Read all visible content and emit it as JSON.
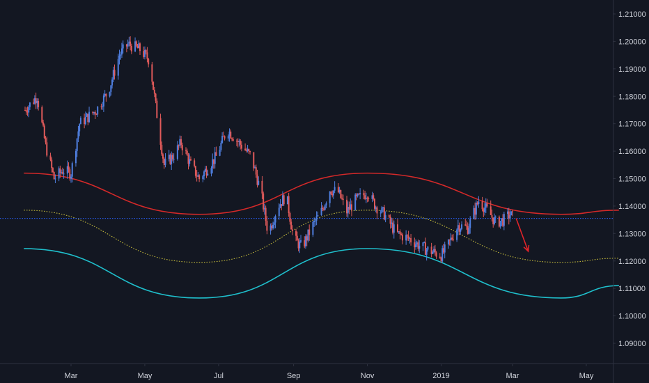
{
  "chart_data": {
    "type": "candlestick",
    "title": "",
    "ylim": [
      1.085,
      1.215
    ],
    "y_ticks": [
      {
        "label": "1.21000",
        "value": 1.21
      },
      {
        "label": "1.20000",
        "value": 1.2
      },
      {
        "label": "1.19000",
        "value": 1.19
      },
      {
        "label": "1.18000",
        "value": 1.18
      },
      {
        "label": "1.17000",
        "value": 1.17
      },
      {
        "label": "1.16000",
        "value": 1.16
      },
      {
        "label": "1.15000",
        "value": 1.15
      },
      {
        "label": "1.14000",
        "value": 1.14
      },
      {
        "label": "1.13000",
        "value": 1.13
      },
      {
        "label": "1.12000",
        "value": 1.12
      },
      {
        "label": "1.11000",
        "value": 1.11
      },
      {
        "label": "1.10000",
        "value": 1.1
      },
      {
        "label": "1.09000",
        "value": 1.09
      }
    ],
    "x_ticks": [
      {
        "label": "Mar",
        "date": "2018-03-01"
      },
      {
        "label": "May",
        "date": "2018-05-01"
      },
      {
        "label": "Jul",
        "date": "2018-07-01"
      },
      {
        "label": "Sep",
        "date": "2018-09-01"
      },
      {
        "label": "Nov",
        "date": "2018-11-01"
      },
      {
        "label": "2019",
        "date": "2019-01-01"
      },
      {
        "label": "Mar",
        "date": "2019-03-01"
      },
      {
        "label": "May",
        "date": "2019-05-01"
      }
    ],
    "price_path": [
      [
        "2018-01-22",
        1.175
      ],
      [
        "2018-02-01",
        1.18
      ],
      [
        "2018-02-08",
        1.162
      ],
      [
        "2018-02-15",
        1.15
      ],
      [
        "2018-02-22",
        1.153
      ],
      [
        "2018-03-01",
        1.152
      ],
      [
        "2018-03-08",
        1.17
      ],
      [
        "2018-03-22",
        1.175
      ],
      [
        "2018-04-01",
        1.182
      ],
      [
        "2018-04-10",
        1.195
      ],
      [
        "2018-04-17",
        1.199
      ],
      [
        "2018-04-27",
        1.197
      ],
      [
        "2018-05-05",
        1.193
      ],
      [
        "2018-05-12",
        1.17
      ],
      [
        "2018-05-17",
        1.155
      ],
      [
        "2018-05-24",
        1.158
      ],
      [
        "2018-05-31",
        1.163
      ],
      [
        "2018-06-08",
        1.155
      ],
      [
        "2018-06-15",
        1.15
      ],
      [
        "2018-06-29",
        1.158
      ],
      [
        "2018-07-08",
        1.168
      ],
      [
        "2018-07-18",
        1.163
      ],
      [
        "2018-07-28",
        1.158
      ],
      [
        "2018-08-05",
        1.145
      ],
      [
        "2018-08-11",
        1.13
      ],
      [
        "2018-08-19",
        1.14
      ],
      [
        "2018-08-26",
        1.144
      ],
      [
        "2018-09-01",
        1.128
      ],
      [
        "2018-09-08",
        1.125
      ],
      [
        "2018-09-17",
        1.133
      ],
      [
        "2018-09-24",
        1.138
      ],
      [
        "2018-10-01",
        1.146
      ],
      [
        "2018-10-08",
        1.145
      ],
      [
        "2018-10-15",
        1.138
      ],
      [
        "2018-10-22",
        1.142
      ],
      [
        "2018-11-01",
        1.145
      ],
      [
        "2018-11-08",
        1.14
      ],
      [
        "2018-11-15",
        1.137
      ],
      [
        "2018-11-25",
        1.13
      ],
      [
        "2018-12-06",
        1.128
      ],
      [
        "2018-12-16",
        1.125
      ],
      [
        "2019-01-01",
        1.122
      ],
      [
        "2019-01-06",
        1.125
      ],
      [
        "2019-01-15",
        1.133
      ],
      [
        "2019-01-23",
        1.132
      ],
      [
        "2019-02-01",
        1.142
      ],
      [
        "2019-02-09",
        1.138
      ],
      [
        "2019-02-15",
        1.134
      ],
      [
        "2019-02-22",
        1.135
      ],
      [
        "2019-02-27",
        1.137
      ],
      [
        "2019-03-03",
        1.135
      ]
    ],
    "overlays": [
      {
        "kind": "upper_wave",
        "color": "#d42929",
        "points": [
          [
            "2018-01-21",
            1.152
          ],
          [
            "2018-06-15",
            1.137
          ],
          [
            "2018-11-01",
            1.152
          ],
          [
            "2019-04-10",
            1.137
          ],
          [
            "2019-05-28",
            1.1385
          ]
        ]
      },
      {
        "kind": "middle_wave",
        "color": "#bfb63b",
        "dotted": true,
        "points": [
          [
            "2018-01-21",
            1.1385
          ],
          [
            "2018-06-15",
            1.1195
          ],
          [
            "2018-11-01",
            1.1385
          ],
          [
            "2019-04-10",
            1.1195
          ],
          [
            "2019-05-28",
            1.121
          ]
        ]
      },
      {
        "kind": "lower_wave",
        "color": "#1fbfcc",
        "points": [
          [
            "2018-01-21",
            1.1245
          ],
          [
            "2018-06-15",
            1.1065
          ],
          [
            "2018-11-01",
            1.1245
          ],
          [
            "2019-04-10",
            1.1065
          ],
          [
            "2019-05-28",
            1.111
          ]
        ]
      }
    ],
    "current_price_line": {
      "value": 1.1355,
      "color": "#2962ff"
    },
    "projection_arrow": {
      "from": [
        "2019-03-04",
        1.1355
      ],
      "to": [
        "2019-03-14",
        1.1235
      ],
      "color": "#e0242a"
    },
    "colors": {
      "background": "#131722",
      "up": "#4f7fe0",
      "down": "#e05a5a",
      "axis_text": "#d1d4dc",
      "axis_line": "#2e3240"
    },
    "grid": false
  }
}
